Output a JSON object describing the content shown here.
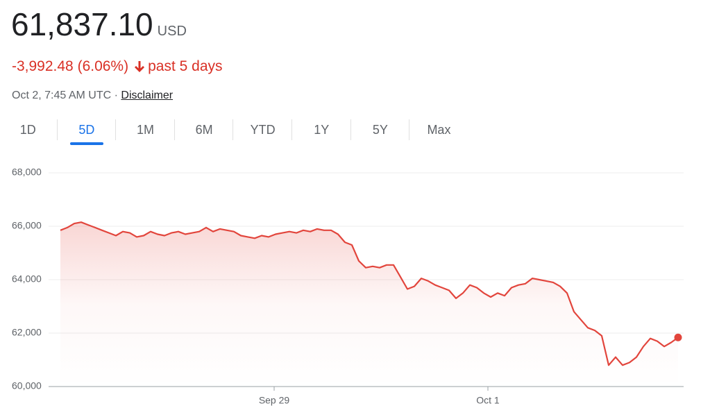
{
  "price": "61,837.10",
  "currency": "USD",
  "change": "-3,992.48 (6.06%)",
  "period": "past 5 days",
  "timestamp": "Oct 2, 7:45 AM UTC",
  "separator": "·",
  "disclaimer": "Disclaimer",
  "tabs": [
    "1D",
    "5D",
    "1M",
    "6M",
    "YTD",
    "1Y",
    "5Y",
    "Max"
  ],
  "selected_tab": 1,
  "chart_data": {
    "type": "line",
    "color": "#e2453c",
    "values": [
      65850,
      65950,
      66100,
      66150,
      66050,
      65950,
      65850,
      65750,
      65650,
      65800,
      65750,
      65600,
      65650,
      65800,
      65700,
      65650,
      65750,
      65800,
      65700,
      65750,
      65800,
      65950,
      65800,
      65900,
      65850,
      65800,
      65650,
      65600,
      65550,
      65650,
      65600,
      65700,
      65750,
      65800,
      65750,
      65850,
      65800,
      65900,
      65850,
      65850,
      65700,
      65400,
      65300,
      64700,
      64450,
      64500,
      64450,
      64550,
      64550,
      64100,
      63650,
      63750,
      64050,
      63950,
      63800,
      63700,
      63600,
      63300,
      63500,
      63800,
      63700,
      63500,
      63350,
      63500,
      63400,
      63700,
      63800,
      63850,
      64050,
      64000,
      63950,
      63900,
      63750,
      63500,
      62800,
      62500,
      62200,
      62100,
      61900,
      60800,
      61100,
      60800,
      60900,
      61100,
      61500,
      61800,
      61700,
      61500,
      61650,
      61837.1
    ],
    "xlim": [
      -1.7,
      89.8
    ],
    "xticks": [
      {
        "value": 30.8,
        "label": "Sep 29"
      },
      {
        "value": 61.6,
        "label": "Oct 1"
      }
    ],
    "ylim": [
      60000,
      68000
    ],
    "yticks": [
      {
        "value": 60000,
        "label": "60,000"
      },
      {
        "value": 62000,
        "label": "62,000"
      },
      {
        "value": 64000,
        "label": "64,000"
      },
      {
        "value": 66000,
        "label": "66,000"
      },
      {
        "value": 68000,
        "label": "68,000"
      }
    ],
    "grid": true
  }
}
